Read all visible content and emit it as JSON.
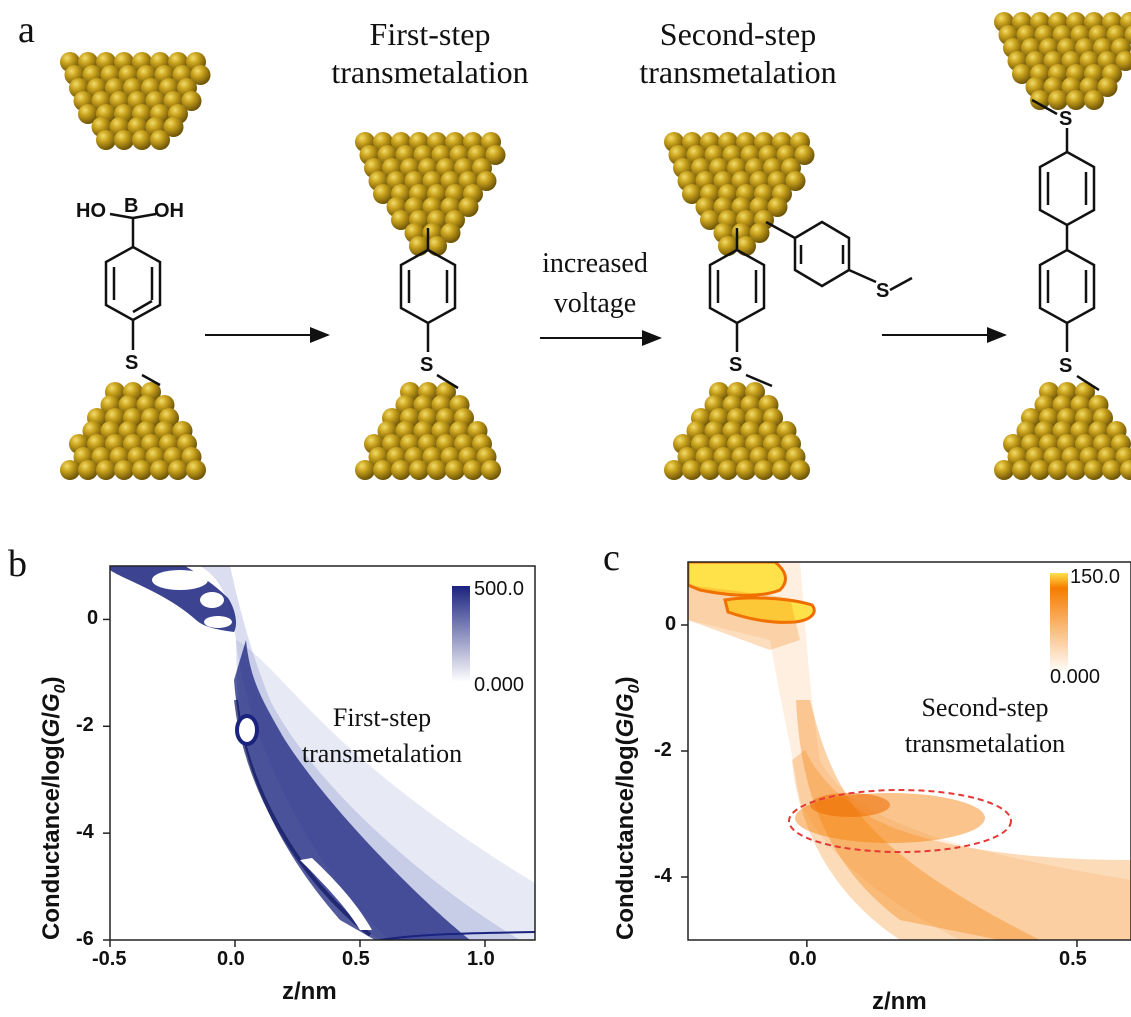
{
  "panel_a": {
    "label": "a",
    "caption_first": [
      "First-step",
      "transmetalation"
    ],
    "caption_second": [
      "Second-step",
      "transmetalation"
    ],
    "arrow_label": [
      "increased",
      "voltage"
    ],
    "atom_ho": "HO",
    "atom_b": "B",
    "atom_oh": "OH",
    "atom_s": "S"
  },
  "panel_b": {
    "label": "b",
    "annotation": [
      "First-step",
      "transmetalation"
    ],
    "colorbar_max": "500.0",
    "colorbar_min": "0.000",
    "color": "#1a237e"
  },
  "panel_c": {
    "label": "c",
    "annotation": [
      "Second-step",
      "transmetalation"
    ],
    "colorbar_max": "150.0",
    "colorbar_min": "0.000",
    "color": "#f57c00"
  },
  "chart_data": [
    {
      "type": "heatmap",
      "xlabel": "z/nm",
      "ylabel": "Conductance/log(G/G0)",
      "xlim": [
        -0.5,
        1.2
      ],
      "ylim": [
        -6,
        1
      ],
      "xticks": [
        "-0.5",
        "0.0",
        "0.5",
        "1.0"
      ],
      "yticks": [
        "0",
        "-2",
        "-4",
        "-6"
      ],
      "colorbar_range": [
        0,
        500
      ]
    },
    {
      "type": "heatmap",
      "xlabel": "z/nm",
      "ylabel": "Conductance/log(G/G0)",
      "xlim": [
        -0.22,
        0.6
      ],
      "ylim": [
        -5,
        1
      ],
      "xticks": [
        "0.0",
        "0.5"
      ],
      "yticks": [
        "0",
        "-2",
        "-4"
      ],
      "colorbar_range": [
        0,
        150
      ],
      "highlight": {
        "shape": "ellipse",
        "center": [
          0.17,
          -3.1
        ],
        "x_halfwidth": 0.2,
        "y_halfheight": 0.5
      }
    }
  ]
}
